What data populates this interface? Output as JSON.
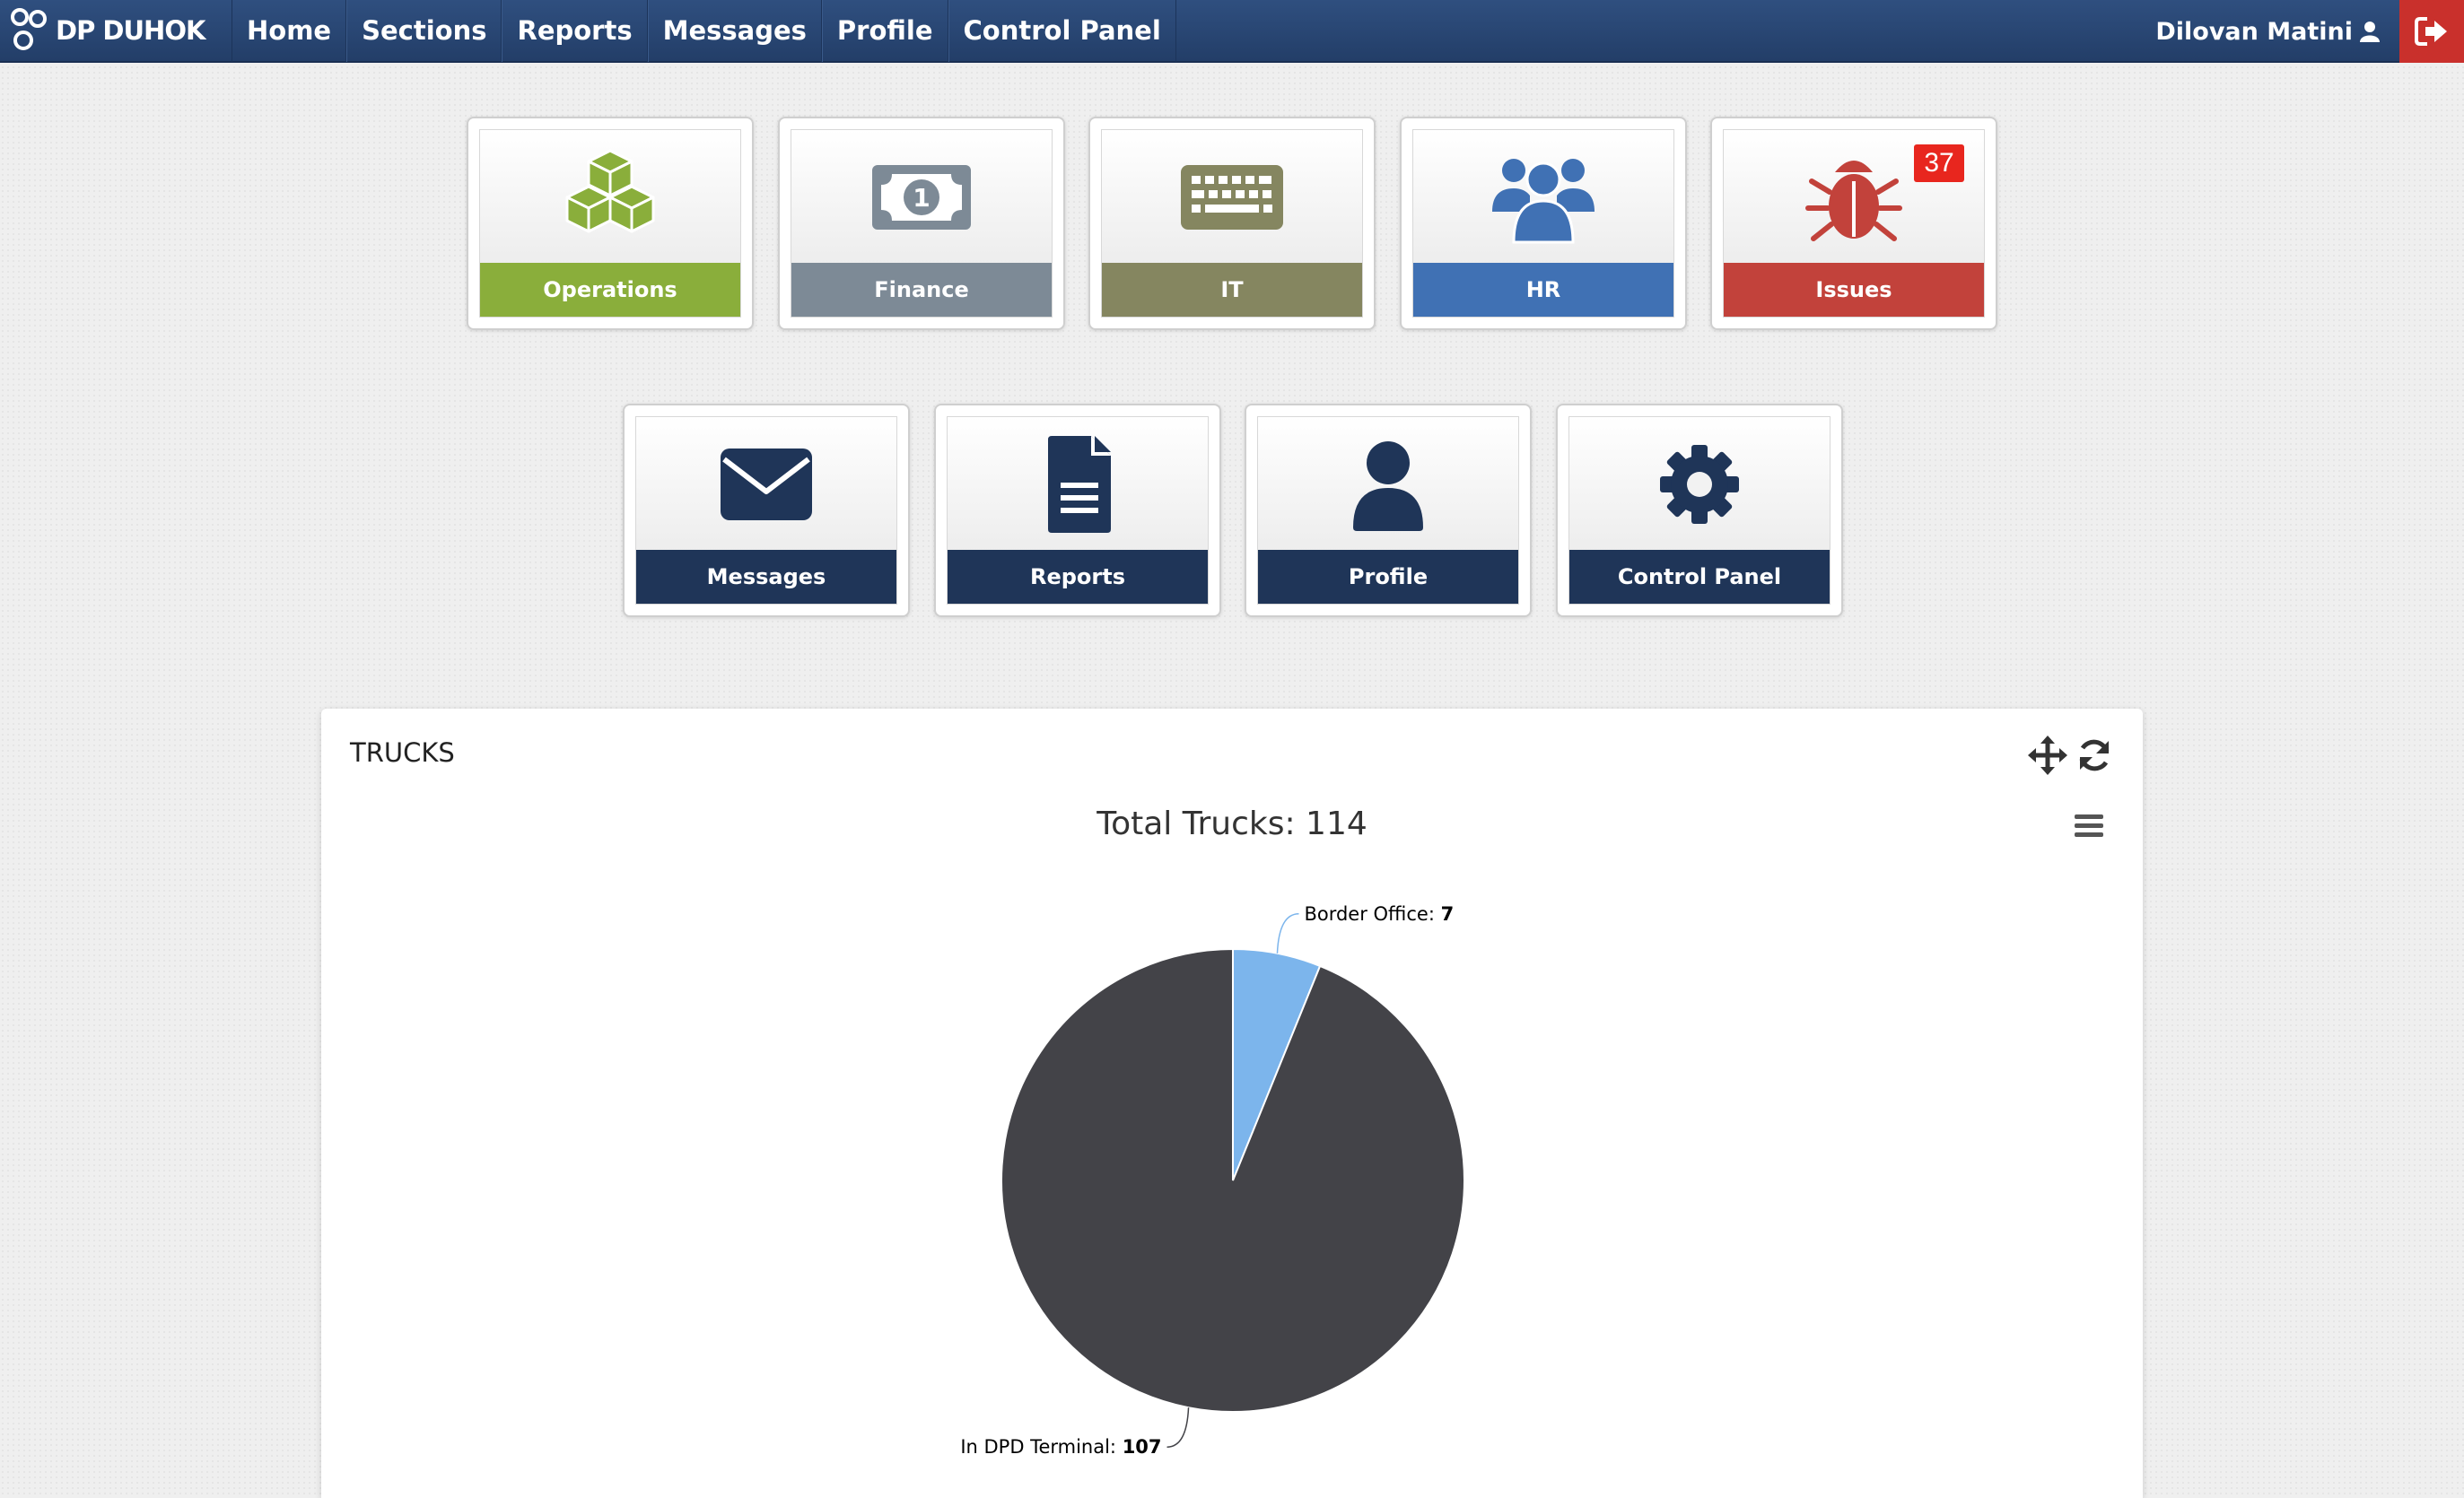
{
  "navbar": {
    "brand": "DP DUHOK",
    "items": [
      {
        "label": "Home"
      },
      {
        "label": "Sections"
      },
      {
        "label": "Reports"
      },
      {
        "label": "Messages"
      },
      {
        "label": "Profile"
      },
      {
        "label": "Control Panel"
      }
    ],
    "user": "Dilovan Matini"
  },
  "sections": [
    {
      "label": "Operations",
      "color": "#8aae3b",
      "icon": "cubes-icon"
    },
    {
      "label": "Finance",
      "color": "#7d8a96",
      "icon": "money-icon"
    },
    {
      "label": "IT",
      "color": "#858660",
      "icon": "keyboard-icon"
    },
    {
      "label": "HR",
      "color": "#4071b4",
      "icon": "users-icon"
    },
    {
      "label": "Issues",
      "color": "#c2423b",
      "icon": "bug-icon",
      "badge": "37"
    }
  ],
  "shortcuts": [
    {
      "label": "Messages",
      "color": "#1f3558",
      "icon": "envelope-icon"
    },
    {
      "label": "Reports",
      "color": "#1f3558",
      "icon": "file-icon"
    },
    {
      "label": "Profile",
      "color": "#1f3558",
      "icon": "user-icon"
    },
    {
      "label": "Control Panel",
      "color": "#1f3558",
      "icon": "gear-icon"
    }
  ],
  "panel": {
    "title": "TRUCKS"
  },
  "chart_data": {
    "type": "pie",
    "title": "Total Trucks: 114",
    "slices": [
      {
        "label": "Border Office",
        "value": 7,
        "color": "#7cb5ec"
      },
      {
        "label": "In DPD Terminal",
        "value": 107,
        "color": "#434348"
      }
    ]
  }
}
